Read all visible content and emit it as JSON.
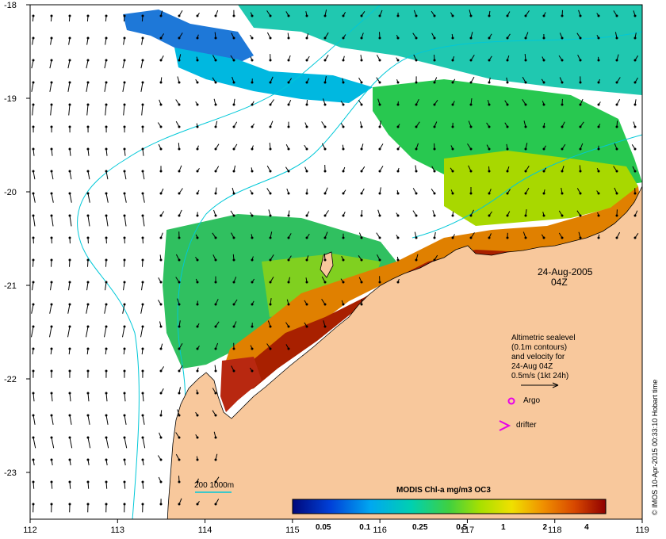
{
  "map": {
    "lon_range": [
      112,
      119
    ],
    "lat_range": [
      -23.5,
      -18
    ],
    "x_ticks": [
      "112",
      "113",
      "114",
      "115",
      "116",
      "117",
      "118",
      "119"
    ],
    "y_ticks": [
      "-18",
      "-19",
      "-20",
      "-21",
      "-22",
      "-23"
    ],
    "date": "24-Aug-2005",
    "time": "04Z",
    "annotation_lines": [
      "Altimetric sealevel",
      "(0.1m contours)",
      "and velocity for",
      "24-Aug 04Z",
      "0.5m/s (1kt 24h)"
    ],
    "argo_label": "Argo",
    "drifter_label": "drifter",
    "depth_label": "200  1000m",
    "credit": "© IMOS 10-Apr-2015 00:33:10 Hobart time",
    "colors": {
      "land": "#f8c89c",
      "coast": "#000000",
      "bathy": "#00c8d8",
      "argo": "#e800e8"
    }
  },
  "colorbar": {
    "title": "MODIS Chl-a mg/m3 OC3",
    "labels": [
      "0.05",
      "0.1",
      "0.25",
      "0.5",
      "1",
      "2",
      "4"
    ],
    "values": [
      0.05,
      0.1,
      0.25,
      0.5,
      1,
      2,
      4
    ],
    "range": [
      0.03,
      5.5
    ]
  }
}
